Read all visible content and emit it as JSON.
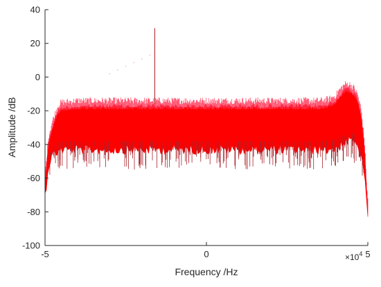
{
  "chart_data": {
    "type": "line",
    "title": "",
    "xlabel": "Frequency /Hz",
    "ylabel": "Amplitude /dB",
    "x_exponent_label": "×10",
    "x_exponent": "4",
    "xlim": [
      -50000,
      50000
    ],
    "ylim": [
      -100,
      40
    ],
    "x_ticks": [
      -50000,
      0,
      50000
    ],
    "x_tick_labels": [
      "-5",
      "0",
      "5"
    ],
    "y_ticks": [
      -100,
      -80,
      -60,
      -40,
      -20,
      0,
      20,
      40
    ],
    "y_tick_labels": [
      "-100",
      "-80",
      "-60",
      "-40",
      "-20",
      "0",
      "20",
      "40"
    ],
    "grid": false,
    "legend": "none",
    "series": [
      {
        "color": "#ff0000",
        "envelope": {
          "x": [
            -50000,
            -49500,
            -49000,
            -48000,
            -47000,
            -46000,
            -45000,
            -40000,
            -30000,
            -20000,
            -10000,
            0,
            10000,
            20000,
            30000,
            35000,
            38000,
            40000,
            41000,
            42000,
            43000,
            44000,
            45000,
            46000,
            47000,
            48000,
            49000,
            49500,
            50000
          ],
          "upper": [
            -60,
            -50,
            -38,
            -30,
            -24,
            -19,
            -17,
            -16,
            -16,
            -16,
            -16,
            -16,
            -16,
            -16,
            -16,
            -16,
            -15,
            -13,
            -10,
            -8,
            -6,
            -6,
            -7,
            -9,
            -13,
            -22,
            -40,
            -60,
            -75
          ],
          "base": [
            -67,
            -60,
            -50,
            -44,
            -42,
            -41,
            -40,
            -40,
            -40,
            -40,
            -40,
            -40,
            -40,
            -40,
            -40,
            -40,
            -40,
            -39,
            -38,
            -37,
            -36,
            -35,
            -35,
            -36,
            -38,
            -45,
            -58,
            -68,
            -78
          ],
          "min": [
            -80,
            -78,
            -70,
            -58,
            -55,
            -55,
            -55,
            -55,
            -55,
            -55,
            -55,
            -55,
            -55,
            -55,
            -55,
            -55,
            -55,
            -55,
            -52,
            -52,
            -50,
            -50,
            -50,
            -52,
            -54,
            -58,
            -65,
            -72,
            -80
          ]
        },
        "spike": {
          "x": -16000,
          "y": 29
        }
      }
    ]
  }
}
